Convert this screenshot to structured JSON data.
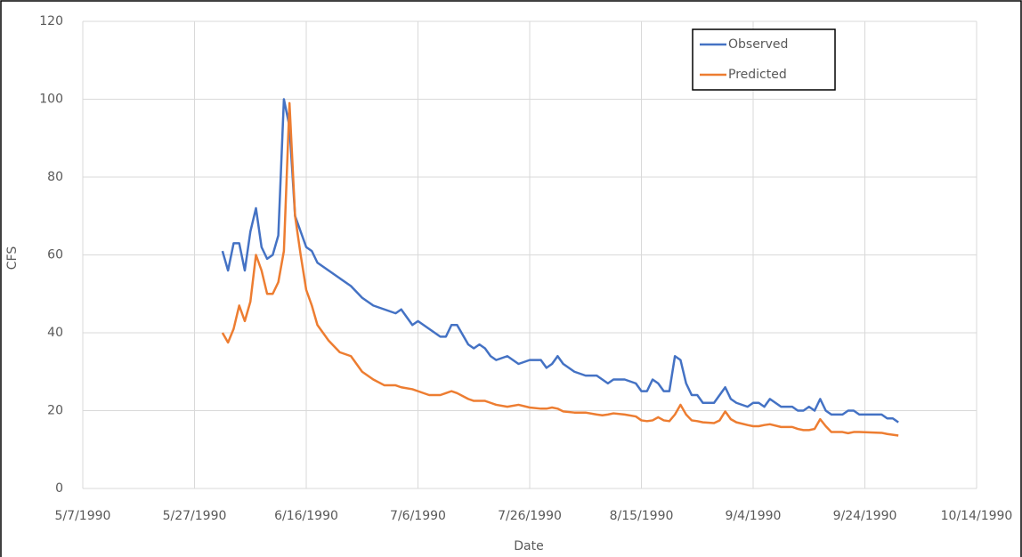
{
  "chart_data": {
    "type": "line",
    "x_label": "Date",
    "y_label": "CFS",
    "x": [
      "6/1/1990",
      "6/2/1990",
      "6/3/1990",
      "6/4/1990",
      "6/5/1990",
      "6/6/1990",
      "6/7/1990",
      "6/8/1990",
      "6/9/1990",
      "6/10/1990",
      "6/11/1990",
      "6/12/1990",
      "6/13/1990",
      "6/14/1990",
      "6/15/1990",
      "6/16/1990",
      "6/17/1990",
      "6/18/1990",
      "6/20/1990",
      "6/22/1990",
      "6/24/1990",
      "6/26/1990",
      "6/28/1990",
      "6/30/1990",
      "7/2/1990",
      "7/3/1990",
      "7/5/1990",
      "7/6/1990",
      "7/8/1990",
      "7/10/1990",
      "7/11/1990",
      "7/12/1990",
      "7/13/1990",
      "7/15/1990",
      "7/16/1990",
      "7/17/1990",
      "7/18/1990",
      "7/19/1990",
      "7/20/1990",
      "7/22/1990",
      "7/24/1990",
      "7/26/1990",
      "7/28/1990",
      "7/29/1990",
      "7/30/1990",
      "7/31/1990",
      "8/1/1990",
      "8/3/1990",
      "8/5/1990",
      "8/7/1990",
      "8/8/1990",
      "8/9/1990",
      "8/10/1990",
      "8/12/1990",
      "8/14/1990",
      "8/15/1990",
      "8/16/1990",
      "8/17/1990",
      "8/18/1990",
      "8/19/1990",
      "8/20/1990",
      "8/21/1990",
      "8/22/1990",
      "8/23/1990",
      "8/24/1990",
      "8/25/1990",
      "8/26/1990",
      "8/28/1990",
      "8/29/1990",
      "8/30/1990",
      "8/31/1990",
      "9/1/1990",
      "9/3/1990",
      "9/4/1990",
      "9/5/1990",
      "9/6/1990",
      "9/7/1990",
      "9/9/1990",
      "9/11/1990",
      "9/12/1990",
      "9/13/1990",
      "9/14/1990",
      "9/15/1990",
      "9/16/1990",
      "9/17/1990",
      "9/18/1990",
      "9/20/1990",
      "9/21/1990",
      "9/22/1990",
      "9/23/1990",
      "9/27/1990",
      "9/28/1990",
      "9/29/1990",
      "9/30/1990"
    ],
    "series": [
      {
        "name": "Observed",
        "color": "#4472c4",
        "values": [
          61,
          56,
          63,
          63,
          56,
          66,
          72,
          62,
          59,
          60,
          65,
          100,
          93,
          70,
          66,
          62,
          61,
          58,
          56,
          54,
          52,
          49,
          47,
          46,
          45,
          46,
          42,
          43,
          41,
          39,
          39,
          42,
          42,
          37,
          36,
          37,
          36,
          34,
          33,
          34,
          32,
          33,
          33,
          31,
          32,
          34,
          32,
          30,
          29,
          29,
          28,
          27,
          28,
          28,
          27,
          25,
          25,
          28,
          27,
          25,
          25,
          34,
          33,
          27,
          24,
          24,
          22,
          22,
          24,
          26,
          23,
          22,
          21,
          22,
          22,
          21,
          23,
          21,
          21,
          20,
          20,
          21,
          20,
          23,
          20,
          19,
          19,
          20,
          20,
          19,
          19,
          18,
          18,
          17
        ]
      },
      {
        "name": "Predicted",
        "color": "#ed7d31",
        "values": [
          40,
          37.5,
          41,
          47,
          43,
          48,
          60,
          56,
          50,
          50,
          53,
          61,
          99,
          70,
          60,
          51,
          47,
          42,
          38,
          35,
          34,
          30,
          28,
          26.5,
          26.5,
          26,
          25.5,
          25,
          24,
          24,
          24.5,
          25,
          24.5,
          23,
          22.5,
          22.5,
          22.5,
          22,
          21.5,
          21,
          21.5,
          20.8,
          20.5,
          20.5,
          20.8,
          20.5,
          19.8,
          19.5,
          19.5,
          19,
          18.8,
          19,
          19.3,
          19,
          18.5,
          17.5,
          17.3,
          17.5,
          18.3,
          17.5,
          17.3,
          19,
          21.5,
          19,
          17.5,
          17.3,
          17,
          16.8,
          17.5,
          19.8,
          17.8,
          17,
          16.3,
          16,
          16,
          16.3,
          16.5,
          15.8,
          15.8,
          15.3,
          15,
          15,
          15.3,
          17.8,
          16,
          14.5,
          14.5,
          14.2,
          14.5,
          14.5,
          14.3,
          14,
          13.8,
          13.6
        ]
      }
    ],
    "xlim": [
      "5/7/1990",
      "10/14/1990"
    ],
    "xticks": [
      "5/7/1990",
      "5/27/1990",
      "6/16/1990",
      "7/6/1990",
      "7/26/1990",
      "8/15/1990",
      "9/4/1990",
      "9/24/1990",
      "10/14/1990"
    ],
    "ylim": [
      0,
      120
    ],
    "yticks": [
      0,
      20,
      40,
      60,
      80,
      100,
      120
    ],
    "grid": true,
    "legend": "upper right"
  }
}
